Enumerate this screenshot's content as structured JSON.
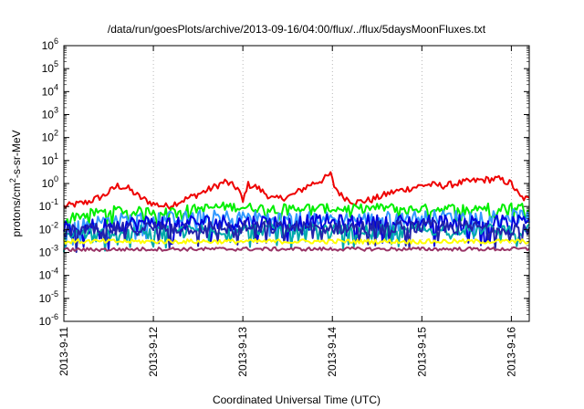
{
  "chart_data": {
    "type": "line",
    "title": "/data/run/goesPlots/archive/2013-09-16/04:00/flux/../flux/5daysMoonFluxes.txt",
    "xlabel": "Coordinated Universal Time (UTC)",
    "ylabel_prefix": "protons/cm",
    "ylabel_sup": "2",
    "ylabel_suffix": "-s-sr-MeV",
    "x_range_days": [
      0,
      5.2
    ],
    "x_ticks": [
      {
        "label": "2013-9-11",
        "day": 0
      },
      {
        "label": "2013-9-12",
        "day": 1
      },
      {
        "label": "2013-9-13",
        "day": 2
      },
      {
        "label": "2013-9-14",
        "day": 3
      },
      {
        "label": "2013-9-15",
        "day": 4
      },
      {
        "label": "2013-9-16",
        "day": 5
      }
    ],
    "y_scale": "log",
    "y_range_exp": [
      -6,
      6
    ],
    "y_ticks": [
      {
        "base": "10",
        "exp": "6"
      },
      {
        "base": "10",
        "exp": "5"
      },
      {
        "base": "10",
        "exp": "4"
      },
      {
        "base": "10",
        "exp": "3"
      },
      {
        "base": "10",
        "exp": "2"
      },
      {
        "base": "10",
        "exp": "1"
      },
      {
        "base": "10",
        "exp": "0"
      },
      {
        "base": "10",
        "exp": "-1"
      },
      {
        "base": "10",
        "exp": "-2"
      },
      {
        "base": "10",
        "exp": "-3"
      },
      {
        "base": "10",
        "exp": "-4"
      },
      {
        "base": "10",
        "exp": "-5"
      },
      {
        "base": "10",
        "exp": "-6"
      }
    ],
    "grid": "vertical-dotted",
    "series": [
      {
        "color": "#ee0000",
        "key": [
          [
            0,
            0.1
          ],
          [
            0.25,
            0.15
          ],
          [
            0.45,
            0.3
          ],
          [
            0.6,
            0.8
          ],
          [
            0.72,
            0.6
          ],
          [
            0.85,
            0.25
          ],
          [
            1.0,
            0.13
          ],
          [
            1.15,
            0.1
          ],
          [
            1.35,
            0.2
          ],
          [
            1.6,
            0.5
          ],
          [
            1.8,
            1.2
          ],
          [
            1.95,
            0.6
          ],
          [
            2.0,
            0.15
          ],
          [
            2.05,
            0.9
          ],
          [
            2.15,
            0.7
          ],
          [
            2.35,
            0.2
          ],
          [
            2.55,
            0.3
          ],
          [
            2.75,
            0.9
          ],
          [
            2.9,
            1.5
          ],
          [
            2.98,
            2.5
          ],
          [
            3.02,
            0.8
          ],
          [
            3.1,
            0.3
          ],
          [
            3.25,
            0.15
          ],
          [
            3.45,
            0.2
          ],
          [
            3.65,
            0.4
          ],
          [
            3.85,
            0.6
          ],
          [
            4.05,
            0.9
          ],
          [
            4.25,
            0.8
          ],
          [
            4.45,
            1.1
          ],
          [
            4.65,
            1.4
          ],
          [
            4.85,
            1.6
          ],
          [
            5.0,
            1.0
          ],
          [
            5.1,
            0.25
          ],
          [
            5.2,
            0.2
          ]
        ],
        "wiggle": 0.15
      },
      {
        "color": "#00ee00",
        "key": [
          [
            0,
            0.03
          ],
          [
            0.3,
            0.05
          ],
          [
            0.6,
            0.07
          ],
          [
            0.9,
            0.06
          ],
          [
            1.2,
            0.07
          ],
          [
            1.5,
            0.08
          ],
          [
            1.8,
            0.1
          ],
          [
            2.1,
            0.09
          ],
          [
            2.4,
            0.08
          ],
          [
            2.7,
            0.09
          ],
          [
            3.0,
            0.08
          ],
          [
            3.3,
            0.08
          ],
          [
            3.6,
            0.09
          ],
          [
            3.9,
            0.08
          ],
          [
            4.2,
            0.08
          ],
          [
            4.5,
            0.09
          ],
          [
            4.8,
            0.09
          ],
          [
            5.0,
            0.1
          ],
          [
            5.2,
            0.09
          ]
        ],
        "wiggle": 0.2
      },
      {
        "color": "#3399ff",
        "key": [
          [
            0,
            0.012
          ],
          [
            0.5,
            0.025
          ],
          [
            1.0,
            0.03
          ],
          [
            1.5,
            0.035
          ],
          [
            2.0,
            0.035
          ],
          [
            2.5,
            0.03
          ],
          [
            3.0,
            0.03
          ],
          [
            3.5,
            0.03
          ],
          [
            4.0,
            0.035
          ],
          [
            4.5,
            0.035
          ],
          [
            5.0,
            0.04
          ],
          [
            5.2,
            0.035
          ]
        ],
        "wiggle": 0.3
      },
      {
        "color": "#0000dd",
        "key": [
          [
            0,
            0.01
          ],
          [
            0.5,
            0.015
          ],
          [
            1.0,
            0.02
          ],
          [
            1.5,
            0.02
          ],
          [
            2.0,
            0.02
          ],
          [
            2.5,
            0.02
          ],
          [
            3.0,
            0.02
          ],
          [
            3.5,
            0.02
          ],
          [
            4.0,
            0.02
          ],
          [
            4.5,
            0.02
          ],
          [
            5.0,
            0.02
          ],
          [
            5.2,
            0.02
          ]
        ],
        "wiggle": 0.35
      },
      {
        "color": "#00aaaa",
        "key": [
          [
            0,
            0.006
          ],
          [
            1.0,
            0.009
          ],
          [
            2.0,
            0.01
          ],
          [
            3.0,
            0.009
          ],
          [
            4.0,
            0.01
          ],
          [
            5.0,
            0.01
          ],
          [
            5.2,
            0.01
          ]
        ],
        "wiggle": 0.25
      },
      {
        "color": "#2222aa",
        "key": [
          [
            0,
            0.008
          ],
          [
            1.0,
            0.012
          ],
          [
            2.0,
            0.012
          ],
          [
            3.0,
            0.012
          ],
          [
            4.0,
            0.013
          ],
          [
            5.0,
            0.012
          ],
          [
            5.2,
            0.012
          ]
        ],
        "wiggle": 0.3
      },
      {
        "color": "#ffff00",
        "key": [
          [
            0,
            0.003
          ],
          [
            1.0,
            0.003
          ],
          [
            2.0,
            0.003
          ],
          [
            3.0,
            0.003
          ],
          [
            4.0,
            0.003
          ],
          [
            5.0,
            0.003
          ],
          [
            5.2,
            0.003
          ]
        ],
        "wiggle": 0.1
      },
      {
        "color": "#993366",
        "key": [
          [
            0,
            0.0013
          ],
          [
            1.0,
            0.0014
          ],
          [
            2.0,
            0.0014
          ],
          [
            3.0,
            0.0014
          ],
          [
            4.0,
            0.0014
          ],
          [
            5.0,
            0.0014
          ],
          [
            5.2,
            0.0014
          ]
        ],
        "wiggle": 0.08
      }
    ]
  }
}
